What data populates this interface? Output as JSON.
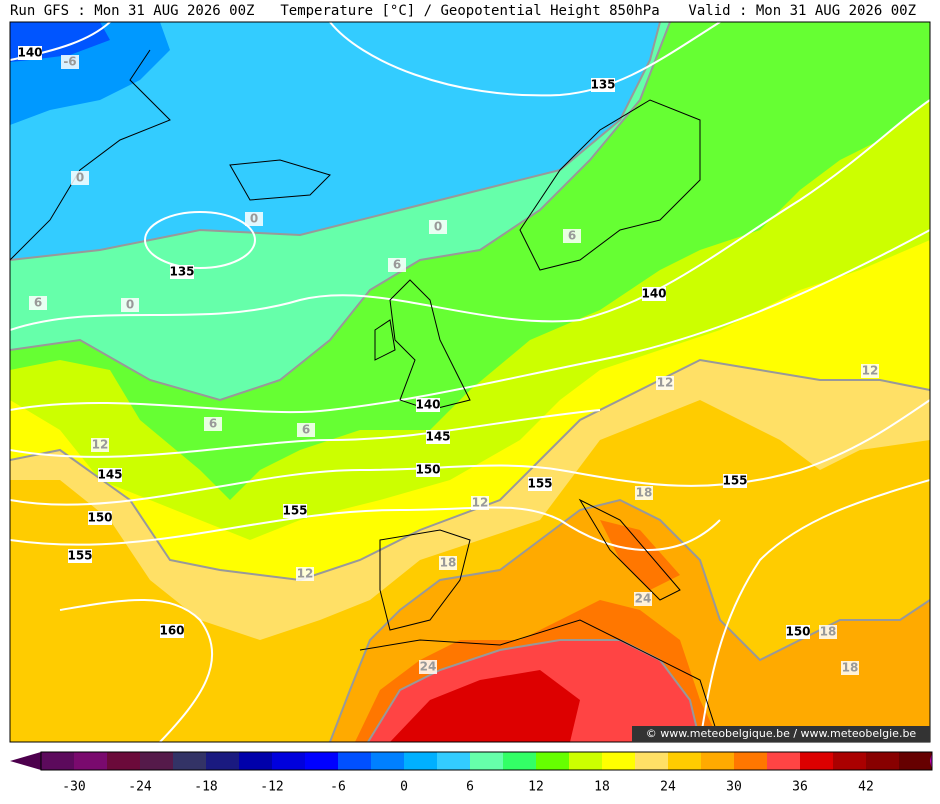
{
  "header": {
    "run": "Run GFS : Mon 31 AUG 2026 00Z",
    "title": "Temperature [°C] / Geopotential Height 850hPa",
    "valid": "Valid : Mon 31 AUG 2026 00Z"
  },
  "height_labels": [
    140,
    135,
    135,
    140,
    140,
    145,
    150,
    155,
    145,
    150,
    155,
    160,
    155,
    155,
    150
  ],
  "temperature_labels": [
    -6,
    0,
    0,
    0,
    0,
    6,
    6,
    6,
    6,
    6,
    12,
    12,
    12,
    12,
    12,
    18,
    18,
    18,
    18,
    24,
    24
  ],
  "colorbar": {
    "ticks": [
      -30,
      -24,
      -18,
      -12,
      -6,
      0,
      6,
      12,
      18,
      24,
      30,
      36,
      42
    ]
  },
  "watermark": "© www.meteobelgique.be / www.meteobelgie.be"
}
